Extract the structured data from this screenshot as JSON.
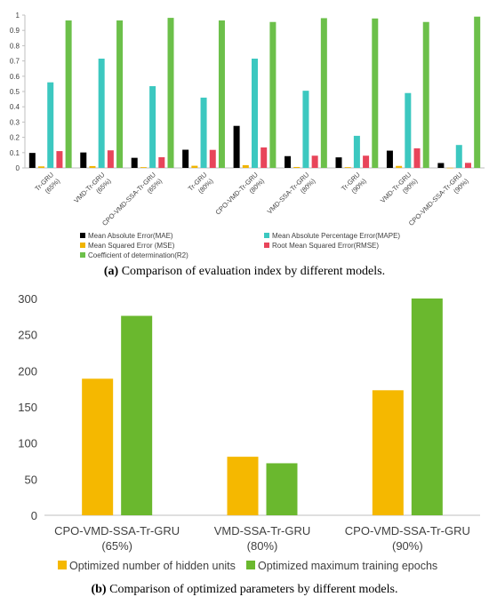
{
  "chart_data": [
    {
      "type": "bar",
      "categories": [
        [
          "Tr-GRU",
          "(65%)"
        ],
        [
          "VMD-Tr-GRU",
          "(65%)"
        ],
        [
          "CPO-VMD-SSA-Tr-GRU",
          "(65%)"
        ],
        [
          "Tr-GRU",
          "(80%)"
        ],
        [
          "CPO-VMD-Tr-GRU",
          "(80%)"
        ],
        [
          "VMD-SSA-Tr-GRU",
          "(80%)"
        ],
        [
          "Tr-GRU",
          "(90%)"
        ],
        [
          "VMD-Tr-GRU",
          "(90%)"
        ],
        [
          "CPO-VMD-SSA-Tr-GRU",
          "(90%)"
        ]
      ],
      "series": [
        {
          "name": "Mean Absolute Error(MAE)",
          "color": "#000000",
          "values": [
            0.098,
            0.101,
            0.066,
            0.119,
            0.275,
            0.077,
            0.069,
            0.113,
            0.032
          ]
        },
        {
          "name": "Mean Squared Error (MSE)",
          "color": "#f0b400",
          "values": [
            0.01,
            0.012,
            0.005,
            0.014,
            0.018,
            0.006,
            0.005,
            0.013,
            0.001
          ]
        },
        {
          "name": "Mean Absolute Percentage Error(MAPE)",
          "color": "#3cc8c0",
          "values": [
            0.56,
            0.715,
            0.535,
            0.46,
            0.715,
            0.505,
            0.21,
            0.49,
            0.15
          ]
        },
        {
          "name": "Root Mean Squared Error(RMSE)",
          "color": "#e8455a",
          "values": [
            0.11,
            0.115,
            0.07,
            0.118,
            0.134,
            0.08,
            0.08,
            0.128,
            0.033
          ]
        },
        {
          "name": "Coefficient of determination(R2)",
          "color": "#6cc04a",
          "values": [
            0.965,
            0.965,
            0.982,
            0.965,
            0.955,
            0.98,
            0.978,
            0.955,
            0.99
          ]
        }
      ],
      "ylim": [
        0,
        1
      ],
      "yticks": [
        "0",
        "0.1",
        "0.2",
        "0.3",
        "0.4",
        "0.5",
        "0.6",
        "0.7",
        "0.8",
        "0.9",
        "1"
      ],
      "legend_order": [
        0,
        2,
        1,
        3,
        4
      ],
      "legend_position": "bottom",
      "grid": false,
      "caption_label": "(a)",
      "caption_text": " Comparison of evaluation index by different models."
    },
    {
      "type": "bar",
      "categories": [
        [
          "CPO-VMD-SSA-Tr-GRU",
          "(65%)"
        ],
        [
          "VMD-SSA-Tr-GRU",
          "(80%)"
        ],
        [
          "CPO-VMD-SSA-Tr-GRU",
          "(90%)"
        ]
      ],
      "series": [
        {
          "name": "Optimized number of hidden units",
          "color": "#f5b800",
          "values": [
            189,
            81,
            173
          ]
        },
        {
          "name": "Optimized maximum training epochs",
          "color": "#6ab82e",
          "values": [
            276,
            72,
            300
          ]
        }
      ],
      "ylim": [
        0,
        300
      ],
      "yticks": [
        "0",
        "50",
        "100",
        "150",
        "200",
        "250",
        "300"
      ],
      "legend_position": "bottom",
      "grid": false,
      "caption_label": "(b)",
      "caption_text": " Comparison of optimized parameters by different models."
    }
  ]
}
